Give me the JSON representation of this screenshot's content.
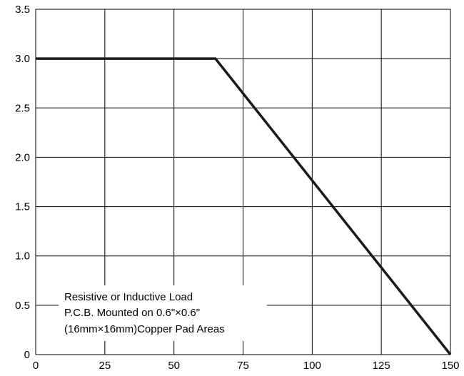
{
  "chart_data": {
    "type": "line",
    "title": "",
    "xlabel": "",
    "ylabel": "",
    "xlim": [
      0,
      150
    ],
    "ylim": [
      0,
      3.5
    ],
    "grid": true,
    "xticks": [
      0,
      25,
      50,
      75,
      100,
      125,
      150
    ],
    "yticks": [
      0,
      0.5,
      1.0,
      1.5,
      2.0,
      2.5,
      3.0,
      3.5
    ],
    "xtick_labels": [
      "0",
      "25",
      "50",
      "75",
      "100",
      "125",
      "150"
    ],
    "ytick_labels": [
      "0",
      "0.5",
      "1.0",
      "1.5",
      "2.0",
      "2.5",
      "3.0",
      "3.5"
    ],
    "series": [
      {
        "x": [
          0,
          65,
          150
        ],
        "y": [
          3.0,
          3.0,
          0
        ],
        "color": "#1a1a1a"
      }
    ],
    "annotation_lines": [
      "Resistive or Inductive Load",
      "P.C.B. Mounted on 0.6\"×0.6\"",
      "(16mm×16mm)Copper Pad Areas"
    ]
  }
}
